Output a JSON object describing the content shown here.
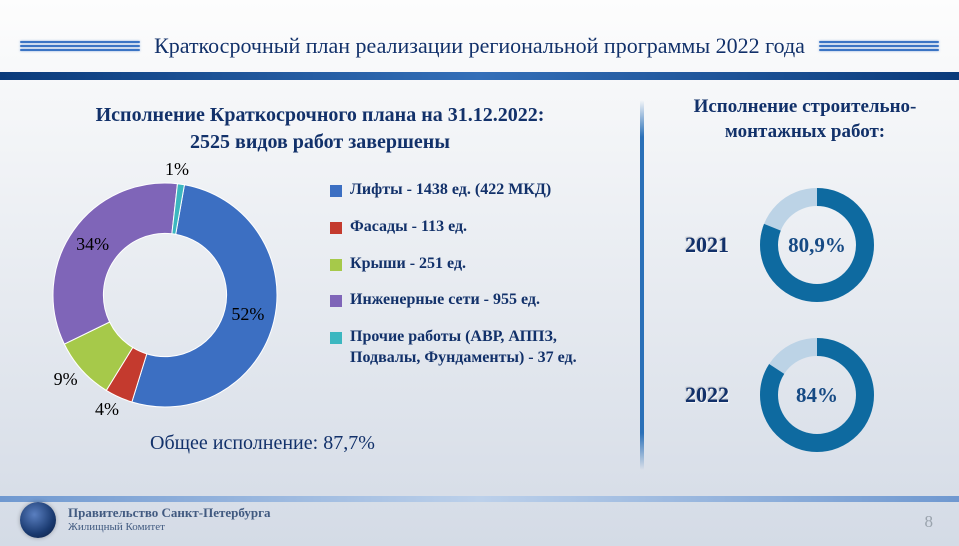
{
  "header": {
    "title": "Краткосрочный план реализации региональной программы 2022 года"
  },
  "plan": {
    "title_line1": "Исполнение Краткосрочного плана на 31.12.2022:",
    "title_line2": "2525 видов работ завершены",
    "total_label": "Общее исполнение: 87,7%"
  },
  "donut": {
    "type": "donut",
    "inner_ratio": 0.55,
    "background": "#e6eaf0",
    "slices": [
      {
        "label": "52%",
        "value": 52,
        "color": "#3c6fc2"
      },
      {
        "label": "4%",
        "value": 4,
        "color": "#c43a2e"
      },
      {
        "label": "9%",
        "value": 9,
        "color": "#a6c94a"
      },
      {
        "label": "34%",
        "value": 34,
        "color": "#7f65b8"
      },
      {
        "label": "1%",
        "value": 1,
        "color": "#3cb7c0"
      }
    ],
    "start_angle_deg": -80
  },
  "legend": {
    "items": [
      {
        "color": "#3c6fc2",
        "text": "Лифты - 1438 ед. (422 МКД)"
      },
      {
        "color": "#c43a2e",
        "text": "Фасады - 113 ед."
      },
      {
        "color": "#a6c94a",
        "text": "Крыши - 251 ед."
      },
      {
        "color": "#7f65b8",
        "text": "Инженерные сети - 955 ед."
      },
      {
        "color": "#3cb7c0",
        "text": "Прочие работы (АВР, АППЗ, Подвалы, Фундаменты) - 37 ед."
      }
    ]
  },
  "rings": {
    "title": "Исполнение строительно-монтажных работ:",
    "track_color": "#bcd3e6",
    "fill_color": "#0e6aa0",
    "stroke_width": 18,
    "items": [
      {
        "year": "2021",
        "pct_label": "80,9%",
        "pct_value": 80.9
      },
      {
        "year": "2022",
        "pct_label": "84%",
        "pct_value": 84.0
      }
    ]
  },
  "footer": {
    "line1": "Правительство Санкт-Петербурга",
    "line2": "Жилищный Комитет",
    "page": "8"
  }
}
